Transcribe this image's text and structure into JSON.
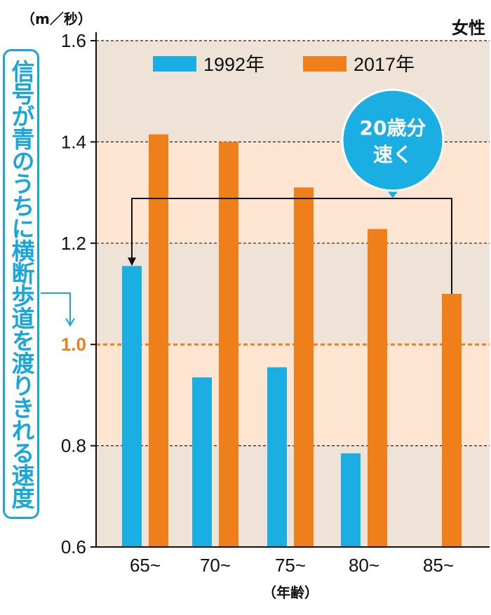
{
  "chart_data": {
    "type": "bar",
    "unit_label": "（m／秒）",
    "gender_label": "女性",
    "categories": [
      "65~",
      "70~",
      "75~",
      "80~",
      "85~"
    ],
    "xlabel": "（年齢）",
    "ylim": [
      0.6,
      1.6
    ],
    "yticks": [
      "0.6",
      "0.8",
      "1.0",
      "1.2",
      "1.4",
      "1.6"
    ],
    "series": [
      {
        "name": "1992年",
        "color": "#1aaee3",
        "values": [
          1.155,
          0.935,
          0.955,
          0.785,
          null
        ]
      },
      {
        "name": "2017年",
        "color": "#ee7f1a",
        "values": [
          1.415,
          1.4,
          1.31,
          1.228,
          1.1
        ]
      }
    ],
    "reference_line": {
      "value": 1.0,
      "label": "1.0",
      "color": "#ee7f1a"
    },
    "side_label": "信号が青のうちに横断歩道を渡りきれる速度",
    "callout": {
      "line1": "20歳分",
      "line2": "速く",
      "color": "#1aaee3"
    },
    "legend_placement": "top",
    "grid": true
  }
}
